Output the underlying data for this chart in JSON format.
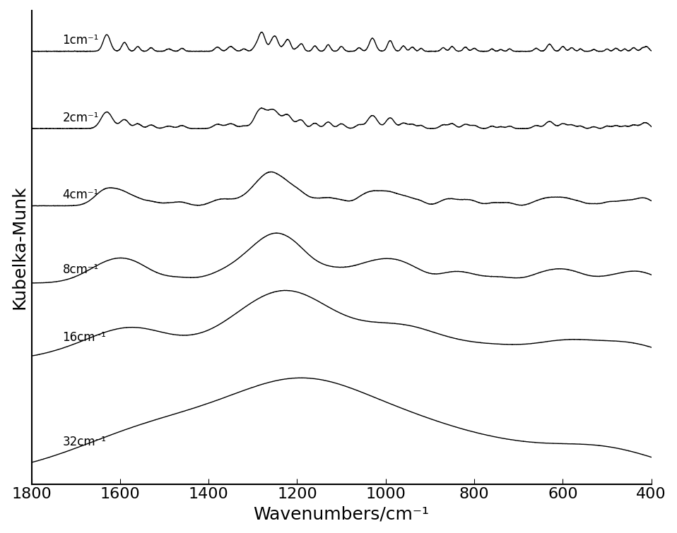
{
  "xlabel": "Wavenumbers/cm⁻¹",
  "ylabel": "Kubelka-Munk",
  "xlim": [
    1800,
    400
  ],
  "ylim_auto": true,
  "xticks": [
    1800,
    1600,
    1400,
    1200,
    1000,
    800,
    600,
    400
  ],
  "labels": [
    "1cm⁻¹",
    "2cm⁻¹",
    "4cm⁻¹",
    "8cm⁻¹",
    "16cm⁻¹",
    "32cm⁻¹"
  ],
  "offsets": [
    5.0,
    4.1,
    3.2,
    2.3,
    1.4,
    0.0
  ],
  "line_color": "#000000",
  "background_color": "#ffffff",
  "fontsize_label": 18,
  "fontsize_tick": 16,
  "linewidth": 1.0
}
